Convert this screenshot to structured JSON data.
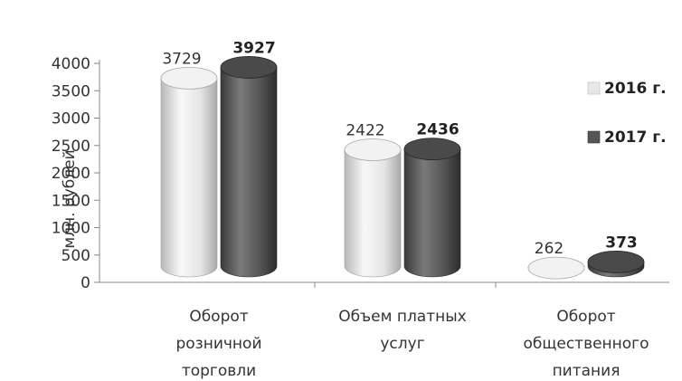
{
  "chart_data": {
    "type": "bar",
    "style": "3d-cylinder",
    "ylabel": "млн. рублей",
    "ylim": [
      0,
      4000
    ],
    "yticks": [
      0,
      500,
      1000,
      1500,
      2000,
      2500,
      3000,
      3500,
      4000
    ],
    "categories": [
      [
        "Оборот",
        "розничной",
        "торговли"
      ],
      [
        "Объем платных",
        "услуг"
      ],
      [
        "Оборот",
        "общественного",
        "питания"
      ]
    ],
    "series": [
      {
        "name": "2016 г.",
        "values": [
          3729,
          2422,
          262
        ],
        "color": "#e3e3e3"
      },
      {
        "name": "2017 г.",
        "values": [
          3927,
          2436,
          373
        ],
        "color": "#555555"
      }
    ],
    "legend_position": "right",
    "grid": false
  }
}
